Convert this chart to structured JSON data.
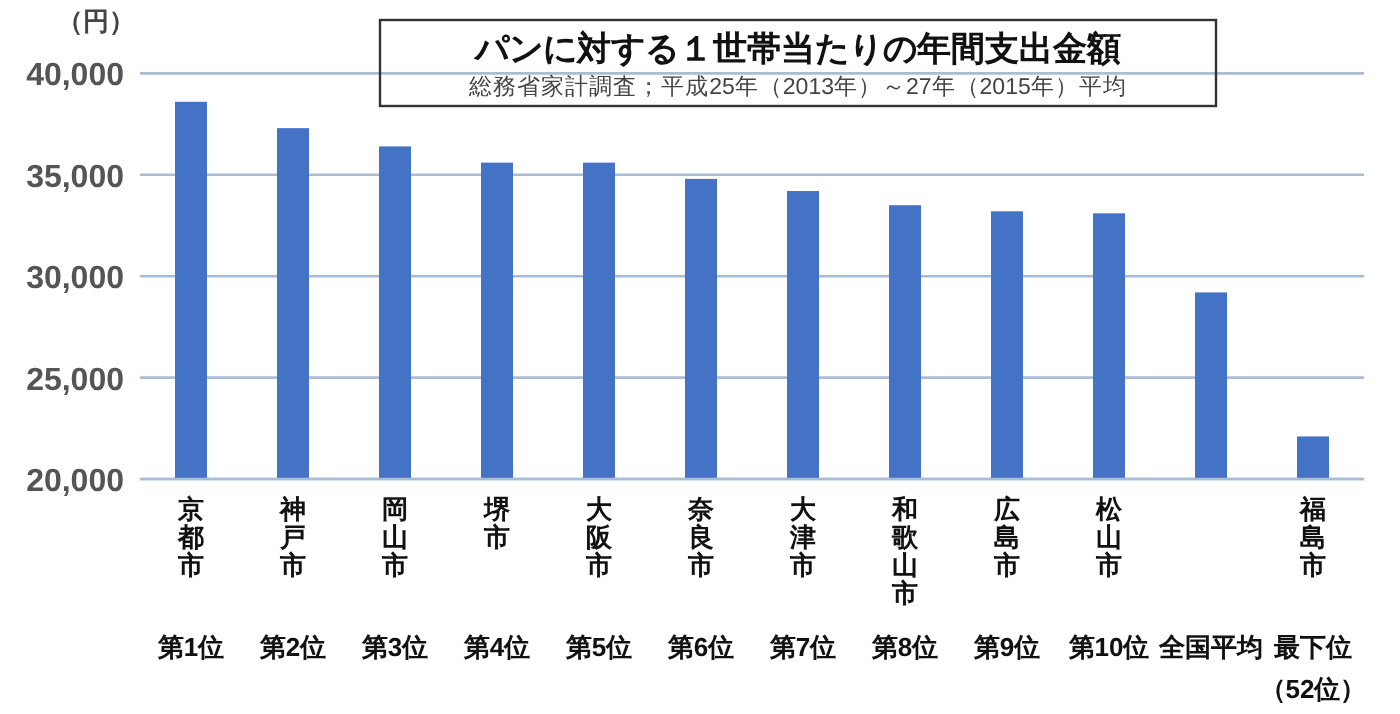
{
  "chart_data": {
    "type": "bar",
    "title": "パンに対する１世帯当たりの年間支出金額",
    "subtitle": "総務省家計調査；平成25年（2013年）～27年（2015年）平均",
    "ylabel": "（円）",
    "categories": [
      "京都市",
      "神戸市",
      "岡山市",
      "堺市",
      "大阪市",
      "奈良市",
      "大津市",
      "和歌山市",
      "広島市",
      "松山市",
      null,
      "福島市"
    ],
    "values": [
      38600,
      37300,
      36400,
      35600,
      35600,
      34800,
      34200,
      33500,
      33200,
      33100,
      29200,
      22100
    ],
    "color": "#4472c4",
    "ylim": [
      20000,
      40000
    ],
    "yticks": [
      {
        "value": 20000,
        "label": "20,000"
      },
      {
        "value": 25000,
        "label": "25,000"
      },
      {
        "value": 30000,
        "label": "30,000"
      },
      {
        "value": 35000,
        "label": "35,000"
      },
      {
        "value": 40000,
        "label": "40,000"
      }
    ],
    "grid": "y",
    "annotations": [
      "第1位",
      "第2位",
      "第3位",
      "第4位",
      "第5位",
      "第6位",
      "第7位",
      "第8位",
      "第9位",
      "第10位",
      "全国平均",
      "最下位（52位）"
    ]
  }
}
